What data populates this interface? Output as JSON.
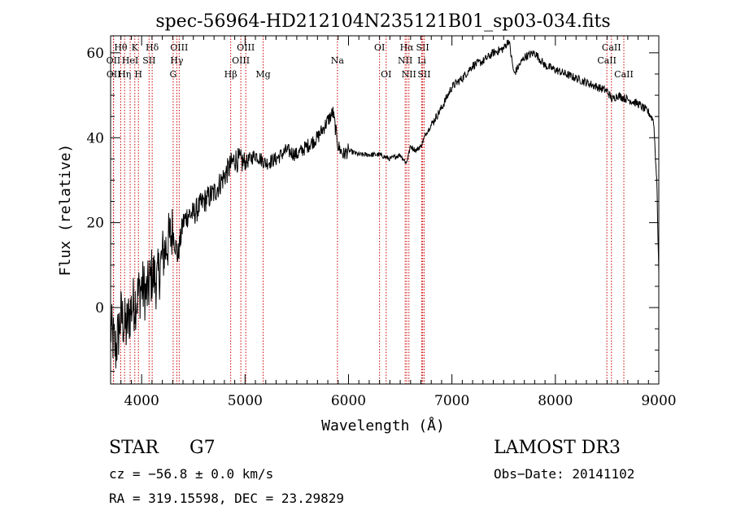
{
  "chart_data": {
    "type": "line",
    "title": "spec-56964-HD212104N235121B01_sp03-034.fits",
    "xlabel": "Wavelength (Å)",
    "ylabel": "Flux (relative)",
    "xlim": [
      3700,
      9000
    ],
    "ylim": [
      -18,
      64
    ],
    "xticks": [
      4000,
      5000,
      6000,
      7000,
      8000,
      9000
    ],
    "yticks": [
      0,
      20,
      40,
      60
    ],
    "grid": false,
    "series": [
      {
        "name": "spectrum",
        "x": [
          3700,
          3750,
          3800,
          3850,
          3900,
          3950,
          4000,
          4050,
          4100,
          4150,
          4200,
          4250,
          4300,
          4350,
          4400,
          4450,
          4500,
          4600,
          4700,
          4800,
          4850,
          4900,
          5000,
          5100,
          5200,
          5300,
          5400,
          5500,
          5600,
          5700,
          5800,
          5850,
          5900,
          5950,
          6000,
          6100,
          6200,
          6300,
          6400,
          6500,
          6560,
          6600,
          6650,
          6700,
          6750,
          6800,
          6900,
          7000,
          7100,
          7200,
          7300,
          7400,
          7500,
          7550,
          7600,
          7700,
          7800,
          7900,
          8000,
          8100,
          8200,
          8300,
          8400,
          8500,
          8550,
          8600,
          8700,
          8800,
          8900,
          8950,
          8980,
          9000
        ],
        "y": [
          -5,
          -10,
          -2,
          -5,
          0,
          2,
          5,
          3,
          8,
          6,
          12,
          15,
          18,
          12,
          20,
          22,
          22,
          25,
          27,
          31,
          33,
          35,
          34,
          36,
          34,
          35,
          37,
          36,
          38,
          40,
          44,
          46,
          38,
          36,
          37,
          36,
          36,
          36,
          35,
          36,
          34,
          38,
          37,
          38,
          41,
          43,
          47,
          52,
          54,
          57,
          58,
          60,
          61,
          63,
          55,
          59,
          60,
          57,
          56,
          55,
          54,
          53,
          52,
          51,
          49,
          50,
          49,
          48,
          46,
          44,
          30,
          8
        ]
      }
    ],
    "line_markers": [
      {
        "label": "Hθ",
        "x": 3798,
        "row": 0
      },
      {
        "label": "K",
        "x": 3934,
        "row": 0
      },
      {
        "label": "Hδ",
        "x": 4102,
        "row": 0
      },
      {
        "label": "OIII",
        "x": 4363,
        "row": 0
      },
      {
        "label": "OIII",
        "x": 5007,
        "row": 0
      },
      {
        "label": "OI",
        "x": 6300,
        "row": 0
      },
      {
        "label": "Hα",
        "x": 6563,
        "row": 0
      },
      {
        "label": "SII",
        "x": 6717,
        "row": 0
      },
      {
        "label": "CaII",
        "x": 8542,
        "row": 0
      },
      {
        "label": "OII",
        "x": 3727,
        "row": 1
      },
      {
        "label": "HeI",
        "x": 3889,
        "row": 1
      },
      {
        "label": "SII",
        "x": 4072,
        "row": 1
      },
      {
        "label": "Hγ",
        "x": 4340,
        "row": 1
      },
      {
        "label": "OIII",
        "x": 4959,
        "row": 1
      },
      {
        "label": "Na",
        "x": 5893,
        "row": 1
      },
      {
        "label": "NII",
        "x": 6548,
        "row": 1
      },
      {
        "label": "Li",
        "x": 6708,
        "row": 1
      },
      {
        "label": "CaII",
        "x": 8498,
        "row": 1
      },
      {
        "label": "OII",
        "x": 3729,
        "row": 2
      },
      {
        "label": "Hη",
        "x": 3835,
        "row": 2
      },
      {
        "label": "H",
        "x": 3969,
        "row": 2
      },
      {
        "label": "G",
        "x": 4305,
        "row": 2
      },
      {
        "label": "Hβ",
        "x": 4861,
        "row": 2
      },
      {
        "label": "Mg",
        "x": 5175,
        "row": 2
      },
      {
        "label": "OI",
        "x": 6364,
        "row": 2
      },
      {
        "label": "NII",
        "x": 6584,
        "row": 2
      },
      {
        "label": "SII",
        "x": 6731,
        "row": 2
      },
      {
        "label": "CaII",
        "x": 8662,
        "row": 2
      }
    ],
    "line_color": "#000000",
    "marker_color": "#cc0000"
  },
  "info": {
    "star_label": "STAR",
    "subclass": "G7",
    "survey": "LAMOST DR3",
    "cz": "cz = −56.8 ± 0.0 km/s",
    "obs_date": "Obs−Date: 20141102",
    "coords": "RA = 319.15598, DEC =  23.29829"
  }
}
